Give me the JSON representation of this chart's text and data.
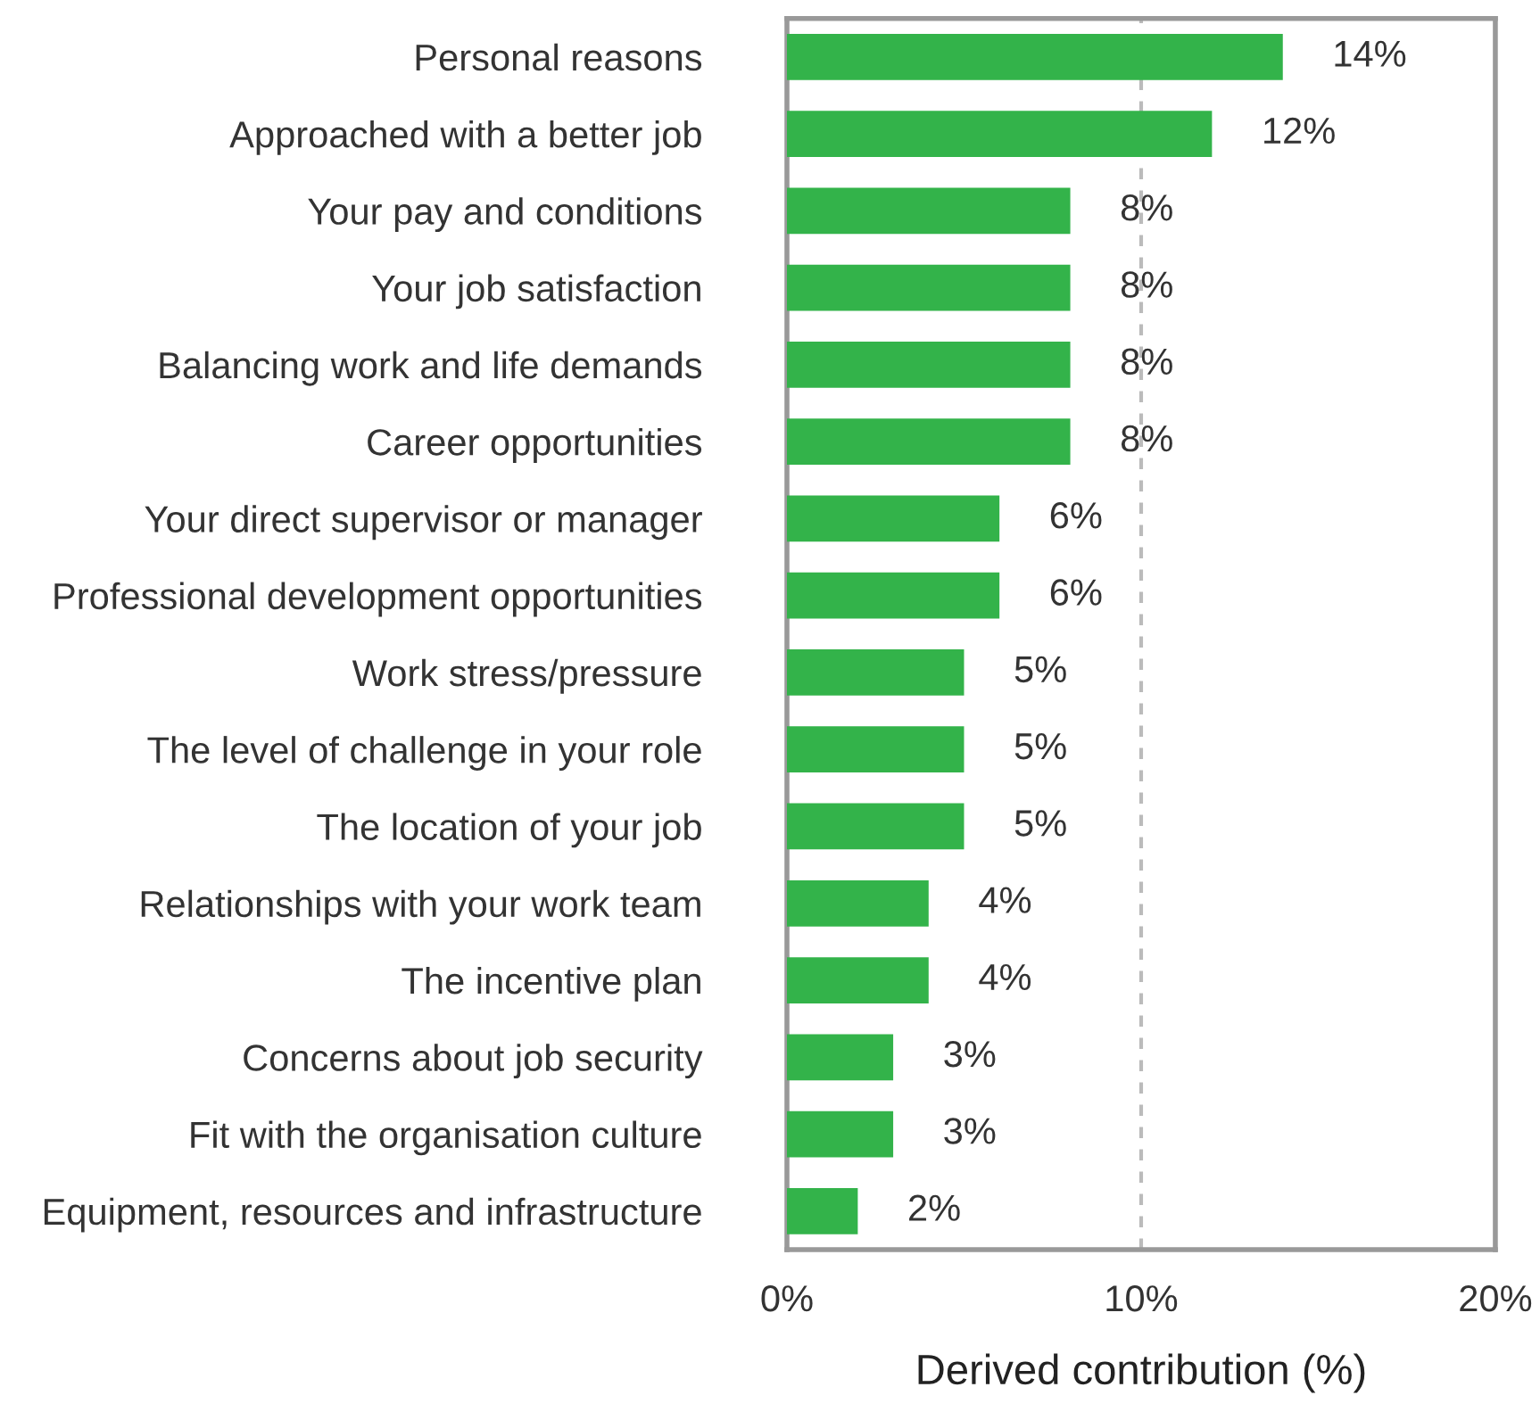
{
  "chart_data": {
    "type": "bar",
    "orientation": "horizontal",
    "categories": [
      "Personal reasons",
      "Approached with a better job",
      "Your pay and conditions",
      "Your job satisfaction",
      "Balancing work and life demands",
      "Career opportunities",
      "Your direct supervisor or manager",
      "Professional development opportunities",
      "Work stress/pressure",
      "The level of challenge in your role",
      "The location of your job",
      "Relationships with your work team",
      "The incentive plan",
      "Concerns about job security",
      "Fit with the organisation culture",
      "Equipment, resources and infrastructure"
    ],
    "values": [
      14,
      12,
      8,
      8,
      8,
      8,
      6,
      6,
      5,
      5,
      5,
      4,
      4,
      3,
      3,
      2
    ],
    "value_labels": [
      "14%",
      "12%",
      "8%",
      "8%",
      "8%",
      "8%",
      "6%",
      "6%",
      "5%",
      "5%",
      "5%",
      "4%",
      "4%",
      "3%",
      "3%",
      "2%"
    ],
    "color": "#33b34a",
    "xlabel": "Derived contribution (%)",
    "xlim": [
      0,
      20
    ],
    "xticks": [
      {
        "value": 0,
        "label": "0%"
      },
      {
        "value": 10,
        "label": "10%"
      },
      {
        "value": 20,
        "label": "20%"
      }
    ],
    "ref_lines": [
      {
        "axis": "x",
        "value": 10,
        "color": "#bbbbbb",
        "line_style": "dashed"
      }
    ],
    "grid": false
  }
}
